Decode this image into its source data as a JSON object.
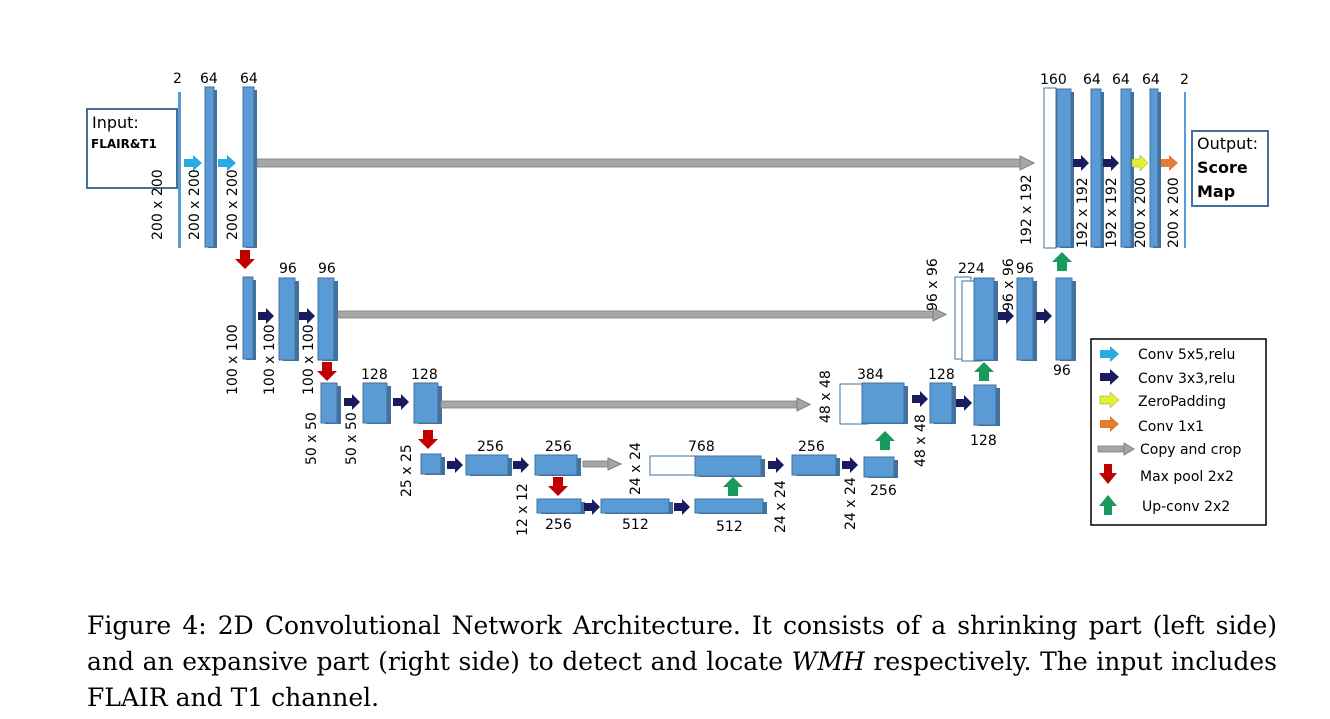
{
  "input": {
    "title": "Input:",
    "channels": "FLAIR&T1"
  },
  "output": {
    "title": "Output:",
    "line1": "Score",
    "line2": "Map"
  },
  "legend": [
    {
      "label": "Conv 5x5,relu",
      "color": "#29abe2",
      "kind": "arrow"
    },
    {
      "label": "Conv 3x3,relu",
      "color": "#1a1a5e",
      "kind": "arrow"
    },
    {
      "label": "ZeroPadding",
      "color": "#e6ec3a",
      "kind": "arrow"
    },
    {
      "label": "Conv 1x1",
      "color": "#e57c34",
      "kind": "arrow"
    },
    {
      "label": "Copy and crop",
      "color": "#a6a6a6",
      "kind": "long-arrow"
    },
    {
      "label": "Max pool 2x2",
      "color": "#c00000",
      "kind": "down-arrow"
    },
    {
      "label": "Up-conv 2x2",
      "color": "#1a9a5a",
      "kind": "up-arrow"
    }
  ],
  "labels": {
    "l0_in": "2",
    "l0_a": "64",
    "l0_b": "64",
    "l0_size_in": "200 x 200",
    "l0_size_a": "200 x 200",
    "l0_size_b": "200 x 200",
    "r0_a": "160",
    "r0_b": "64",
    "r0_c": "64",
    "r0_d": "64",
    "r0_e": "2",
    "r0_size_a": "192 x 192",
    "r0_size_b": "192 x 192",
    "r0_size_c": "192 x 192",
    "r0_size_d": "200 x 200",
    "r0_size_e": "200 x 200",
    "l1_a": "96",
    "l1_b": "96",
    "l1_size_a": "100 x 100",
    "l1_size_b": "100 x 100",
    "l1_size_c": "100 x 100",
    "r1_a": "224",
    "r1_b": "96",
    "r1_c": "96",
    "r1_size_a": "96 x 96",
    "r1_size_b": "96 x 96",
    "l2_a": "128",
    "l2_b": "128",
    "l2_size_a": "50 x 50",
    "l2_size_b": "50 x 50",
    "r2_a": "384",
    "r2_b": "128",
    "r2_c": "128",
    "r2_size_a": "48 x 48",
    "r2_size_b": "48 x 48",
    "l3_a": "256",
    "l3_b": "256",
    "l3_size_a": "25 x 25",
    "l3_size_b": "24 x 24",
    "r3_a": "768",
    "r3_b": "256",
    "r3_c": "256",
    "r3_size_a": "24 x 24",
    "r3_size_b": "24 x 24",
    "b_a": "256",
    "b_b": "512",
    "b_c": "512",
    "b_size": "12 x 12"
  },
  "caption": {
    "part1": "Figure 4: 2D Convolutional Network Architecture. It consists of a shrinking part (left side) and an expansive part (right side) to detect and locate ",
    "emph": "WMH",
    "part2": " respectively. The input includes FLAIR and T1 channel."
  },
  "colors": {
    "block": "#5b9bd5",
    "block_edge": "#41719c",
    "conv5": "#29abe2",
    "conv3": "#1a1a5e",
    "zeropad": "#e6ec3a",
    "conv1": "#e57c34",
    "copy": "#a6a6a6",
    "pool": "#c00000",
    "up": "#1a9a5a"
  }
}
